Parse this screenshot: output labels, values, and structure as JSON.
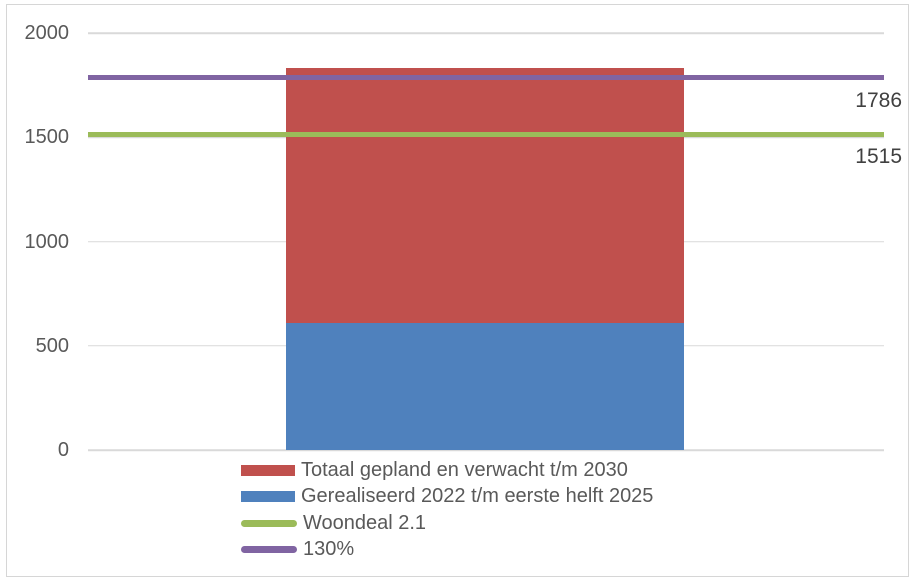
{
  "chart_data": {
    "type": "bar",
    "stacked": true,
    "title": "",
    "xlabel": "",
    "ylabel": "",
    "categories": [
      ""
    ],
    "series": [
      {
        "name": "Gerealiseerd 2022 t/m eerste helft 2025",
        "values": [
          610
        ],
        "color": "#4F81BD"
      },
      {
        "name": "Totaal gepland en verwacht t/m 2030",
        "values": [
          1220
        ],
        "color": "#C0504D"
      }
    ],
    "stack_total": 1830,
    "reference_lines": [
      {
        "name": "Woondeal 2.1",
        "value": 1515,
        "label": "1515",
        "color": "#9BBB59"
      },
      {
        "name": "130%",
        "value": 1786,
        "label": "1786",
        "color": "#8064A2"
      }
    ],
    "ylim": [
      0,
      2000
    ],
    "yticks": [
      0,
      500,
      1000,
      1500,
      2000
    ],
    "ytick_labels": [
      "0",
      "500",
      "1000",
      "1500",
      "2000"
    ],
    "grid": true,
    "legend_position": "bottom-left",
    "legend": [
      {
        "label": "Totaal gepland en verwacht t/m 2030",
        "swatch": "box",
        "color": "#C0504D"
      },
      {
        "label": "Gerealiseerd 2022 t/m eerste helft 2025",
        "swatch": "box",
        "color": "#4F81BD"
      },
      {
        "label": "Woondeal 2.1",
        "swatch": "line",
        "color": "#9BBB59"
      },
      {
        "label": "130%",
        "swatch": "line",
        "color": "#8064A2"
      }
    ]
  },
  "colors": {
    "grid": "#D9D9D9",
    "axis_text": "#595959",
    "data_label_text": "#404040",
    "border": "#D6D6D6",
    "background": "#FFFFFF"
  }
}
